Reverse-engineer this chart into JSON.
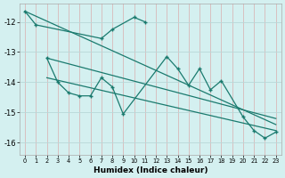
{
  "xlabel": "Humidex (Indice chaleur)",
  "bg_color": "#d4f0f0",
  "grid_color": "#b8d8d8",
  "line_color": "#1a7a6e",
  "xlim": [
    -0.5,
    23.5
  ],
  "ylim": [
    -16.4,
    -11.4
  ],
  "yticks": [
    -16,
    -15,
    -14,
    -13,
    -12
  ],
  "xticks": [
    0,
    1,
    2,
    3,
    4,
    5,
    6,
    7,
    8,
    9,
    10,
    11,
    12,
    13,
    14,
    15,
    16,
    17,
    18,
    19,
    20,
    21,
    22,
    23
  ],
  "series1_x": [
    0,
    1,
    7,
    8,
    10,
    11
  ],
  "series1_y": [
    -11.65,
    -12.1,
    -12.55,
    -12.25,
    -11.85,
    -12.0
  ],
  "series2_x": [
    2,
    3,
    4,
    5,
    6,
    7,
    8,
    9,
    13,
    14,
    15,
    16,
    17,
    18,
    20,
    21,
    22,
    23
  ],
  "series2_y": [
    -13.2,
    -14.0,
    -14.35,
    -14.45,
    -14.45,
    -13.85,
    -14.15,
    -15.05,
    -13.15,
    -13.55,
    -14.1,
    -13.55,
    -14.25,
    -13.95,
    -15.15,
    -15.6,
    -15.85,
    -15.65
  ],
  "trend1_x": [
    0,
    23
  ],
  "trend1_y": [
    -11.65,
    -15.4
  ],
  "trend2_x": [
    2,
    23
  ],
  "trend2_y": [
    -13.2,
    -15.2
  ],
  "trend3_x": [
    2,
    23
  ],
  "trend3_y": [
    -13.85,
    -15.6
  ]
}
